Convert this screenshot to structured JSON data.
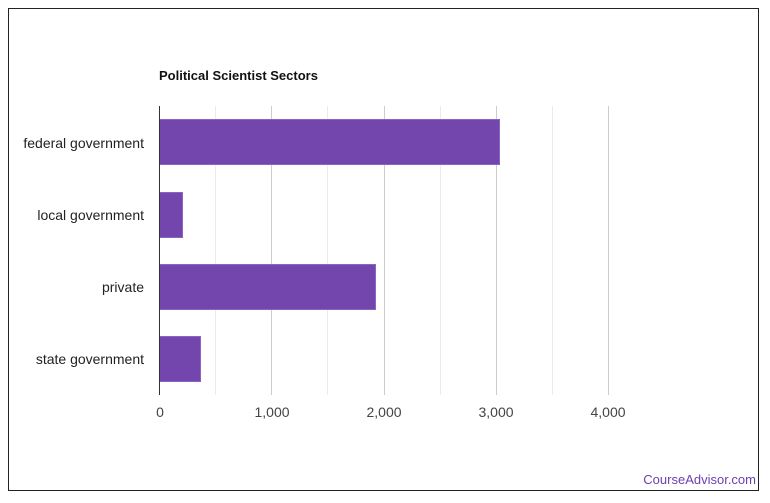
{
  "title": "Political Scientist Sectors",
  "brand": "CourseAdvisor.com",
  "colors": {
    "bar": "#7246ad",
    "brand": "#6b3fb0"
  },
  "axis": {
    "ticks": [
      "0",
      "1,000",
      "2,000",
      "3,000",
      "4,000"
    ]
  },
  "categories": [
    "federal government",
    "local government",
    "private",
    "state government"
  ],
  "chart_data": {
    "type": "bar",
    "orientation": "horizontal",
    "title": "Political Scientist Sectors",
    "categories": [
      "federal government",
      "local government",
      "private",
      "state government"
    ],
    "values": [
      3040,
      214,
      1932,
      374
    ],
    "xlabel": "",
    "ylabel": "",
    "xlim": [
      0,
      4000
    ],
    "xticks": [
      0,
      1000,
      2000,
      3000,
      4000
    ],
    "grid": true,
    "legend": "none"
  }
}
